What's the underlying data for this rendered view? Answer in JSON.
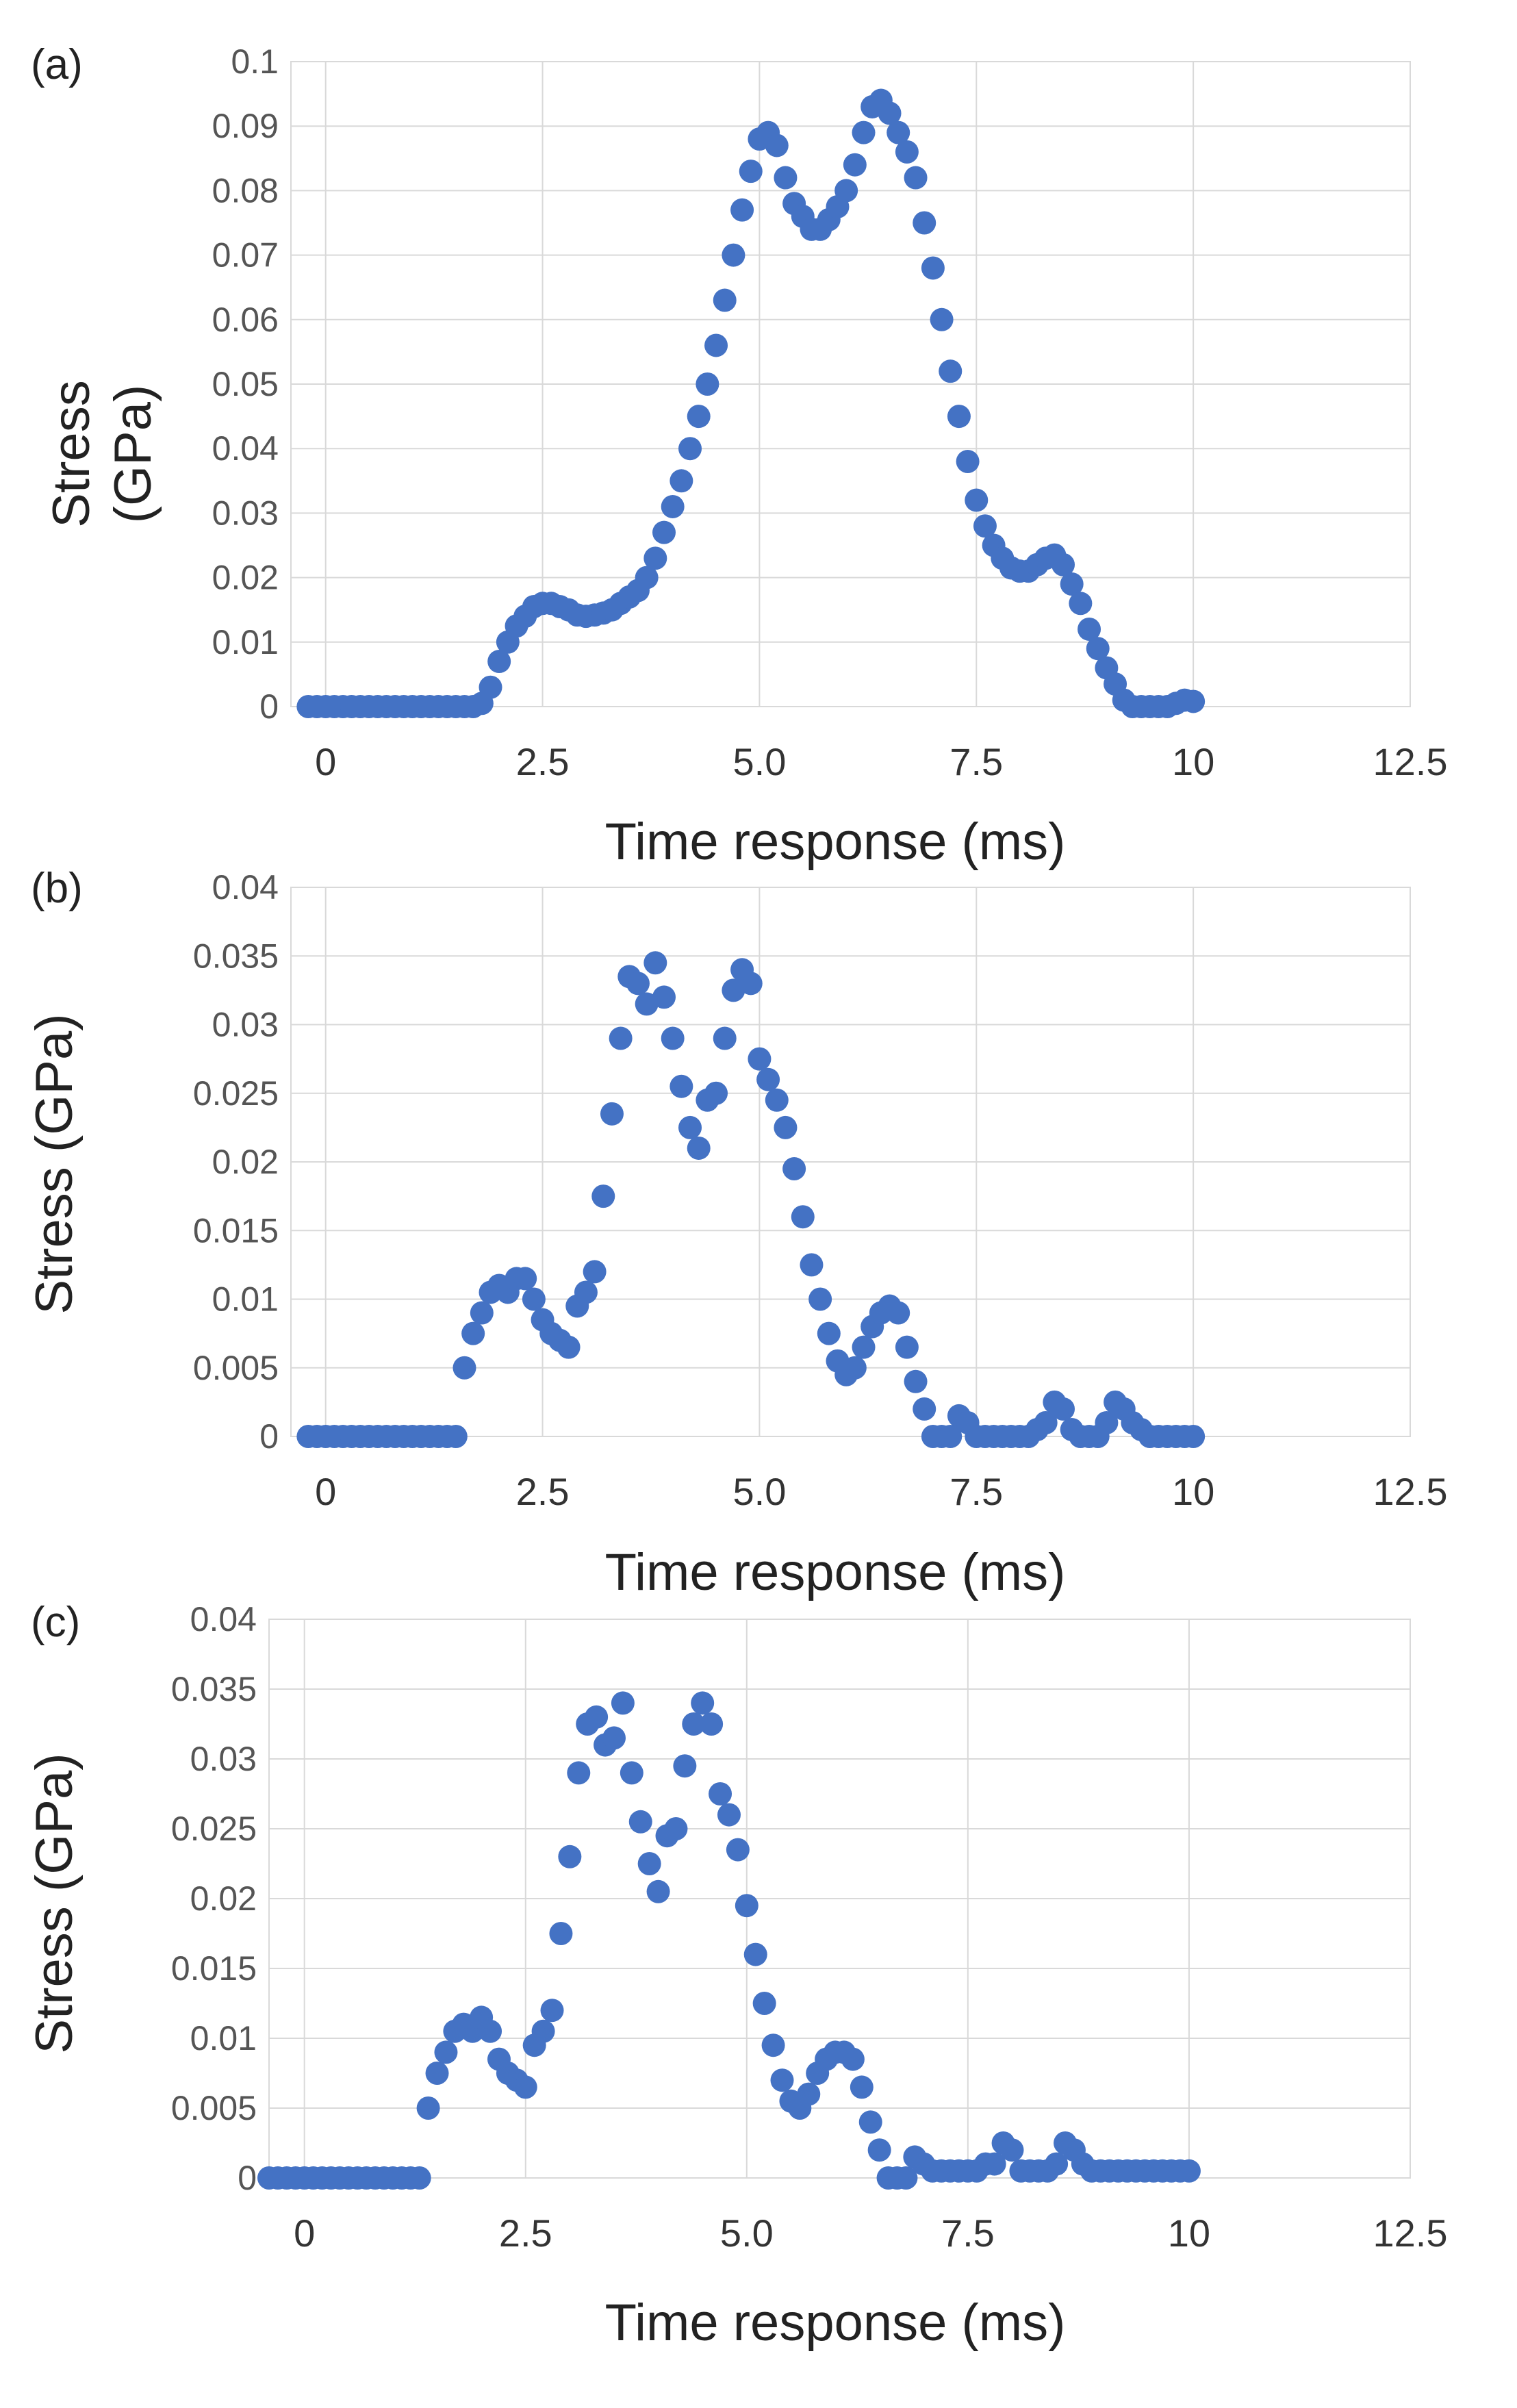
{
  "chart_data": [
    {
      "type": "scatter",
      "panel_label": "(a)",
      "xlabel": "Time response (ms)",
      "ylabel_lines": [
        "Stress",
        "(GPa)"
      ],
      "xlim": [
        -0.4,
        12.5
      ],
      "ylim": [
        0,
        0.1
      ],
      "x_ticks": [
        0,
        2.5,
        5,
        7.5,
        10,
        12.5
      ],
      "x_tick_labels": [
        "0",
        "2.5",
        "5.0",
        "7.5",
        "10",
        "12.5"
      ],
      "y_ticks": [
        0,
        0.01,
        0.02,
        0.03,
        0.04,
        0.05,
        0.06,
        0.07,
        0.08,
        0.09,
        0.1
      ],
      "y_tick_labels": [
        "0",
        "0.01",
        "0.02",
        "0.03",
        "0.04",
        "0.05",
        "0.06",
        "0.07",
        "0.08",
        "0.09",
        "0.1"
      ],
      "grid": true,
      "marker_color": "#4472C4",
      "series": [
        {
          "name": "Stress",
          "x": [
            -0.2,
            -0.1,
            0,
            0.1,
            0.2,
            0.3,
            0.4,
            0.5,
            0.6,
            0.7,
            0.8,
            0.9,
            1.0,
            1.1,
            1.2,
            1.3,
            1.4,
            1.5,
            1.6,
            1.7,
            1.8,
            1.9,
            2.0,
            2.1,
            2.2,
            2.3,
            2.4,
            2.5,
            2.6,
            2.7,
            2.8,
            2.9,
            3.0,
            3.1,
            3.2,
            3.3,
            3.4,
            3.5,
            3.6,
            3.7,
            3.8,
            3.9,
            4.0,
            4.1,
            4.2,
            4.3,
            4.4,
            4.5,
            4.6,
            4.7,
            4.8,
            4.9,
            5.0,
            5.1,
            5.2,
            5.3,
            5.4,
            5.5,
            5.6,
            5.7,
            5.8,
            5.9,
            6.0,
            6.1,
            6.2,
            6.3,
            6.4,
            6.5,
            6.6,
            6.7,
            6.8,
            6.9,
            7.0,
            7.1,
            7.2,
            7.3,
            7.4,
            7.5,
            7.6,
            7.7,
            7.8,
            7.9,
            8.0,
            8.1,
            8.2,
            8.3,
            8.4,
            8.5,
            8.6,
            8.7,
            8.8,
            8.9,
            9.0,
            9.1,
            9.2,
            9.3,
            9.4,
            9.5,
            9.6,
            9.7,
            9.8,
            9.9,
            10.0
          ],
          "y": [
            0,
            0,
            0,
            0,
            0,
            0,
            0,
            0,
            0,
            0,
            0,
            0,
            0,
            0,
            0,
            0,
            0,
            0,
            0,
            0,
            0.0005,
            0.003,
            0.007,
            0.01,
            0.0125,
            0.014,
            0.0155,
            0.016,
            0.016,
            0.0155,
            0.015,
            0.0142,
            0.014,
            0.0142,
            0.0145,
            0.015,
            0.016,
            0.017,
            0.018,
            0.02,
            0.023,
            0.027,
            0.031,
            0.035,
            0.04,
            0.045,
            0.05,
            0.056,
            0.063,
            0.07,
            0.077,
            0.083,
            0.088,
            0.089,
            0.087,
            0.082,
            0.078,
            0.076,
            0.074,
            0.074,
            0.0755,
            0.0775,
            0.08,
            0.084,
            0.089,
            0.093,
            0.094,
            0.092,
            0.089,
            0.086,
            0.082,
            0.075,
            0.068,
            0.06,
            0.052,
            0.045,
            0.038,
            0.032,
            0.028,
            0.025,
            0.023,
            0.0215,
            0.021,
            0.021,
            0.022,
            0.023,
            0.0235,
            0.022,
            0.019,
            0.016,
            0.012,
            0.009,
            0.006,
            0.0035,
            0.001,
            0,
            0,
            0,
            0,
            0,
            0.0005,
            0.001,
            0.0008
          ]
        }
      ]
    },
    {
      "type": "scatter",
      "panel_label": "(b)",
      "xlabel": "Time response (ms)",
      "ylabel": "Stress (GPa)",
      "xlim": [
        -0.4,
        12.5
      ],
      "ylim": [
        0,
        0.04
      ],
      "x_ticks": [
        0,
        2.5,
        5,
        7.5,
        10,
        12.5
      ],
      "x_tick_labels": [
        "0",
        "2.5",
        "5.0",
        "7.5",
        "10",
        "12.5"
      ],
      "y_ticks": [
        0,
        0.005,
        0.01,
        0.015,
        0.02,
        0.025,
        0.03,
        0.035,
        0.04
      ],
      "y_tick_labels": [
        "0",
        "0.005",
        "0.01",
        "0.015",
        "0.02",
        "0.025",
        "0.03",
        "0.035",
        "0.04"
      ],
      "grid": true,
      "marker_color": "#4472C4",
      "series": [
        {
          "name": "Stress",
          "x": [
            -0.2,
            -0.1,
            0,
            0.1,
            0.2,
            0.3,
            0.4,
            0.5,
            0.6,
            0.7,
            0.8,
            0.9,
            1.0,
            1.1,
            1.2,
            1.3,
            1.4,
            1.5,
            1.6,
            1.7,
            1.8,
            1.9,
            2.0,
            2.1,
            2.2,
            2.3,
            2.4,
            2.5,
            2.6,
            2.7,
            2.8,
            2.9,
            3.0,
            3.1,
            3.2,
            3.3,
            3.4,
            3.5,
            3.6,
            3.7,
            3.8,
            3.9,
            4.0,
            4.1,
            4.2,
            4.3,
            4.4,
            4.5,
            4.6,
            4.7,
            4.8,
            4.9,
            5.0,
            5.1,
            5.2,
            5.3,
            5.4,
            5.5,
            5.6,
            5.7,
            5.8,
            5.9,
            6.0,
            6.1,
            6.2,
            6.3,
            6.4,
            6.5,
            6.6,
            6.7,
            6.8,
            6.9,
            7.0,
            7.1,
            7.2,
            7.3,
            7.4,
            7.5,
            7.6,
            7.7,
            7.8,
            7.9,
            8.0,
            8.1,
            8.2,
            8.3,
            8.4,
            8.5,
            8.6,
            8.7,
            8.8,
            8.9,
            9.0,
            9.1,
            9.2,
            9.3,
            9.4,
            9.5,
            9.6,
            9.7,
            9.8,
            9.9,
            10.0
          ],
          "y": [
            0,
            0,
            0,
            0,
            0,
            0,
            0,
            0,
            0,
            0,
            0,
            0,
            0,
            0,
            0,
            0,
            0,
            0,
            0.005,
            0.0075,
            0.009,
            0.0105,
            0.011,
            0.0105,
            0.0115,
            0.0115,
            0.01,
            0.0085,
            0.0075,
            0.007,
            0.0065,
            0.0095,
            0.0105,
            0.012,
            0.0175,
            0.0235,
            0.029,
            0.0335,
            0.033,
            0.0315,
            0.0345,
            0.032,
            0.029,
            0.0255,
            0.0225,
            0.021,
            0.0245,
            0.025,
            0.029,
            0.0325,
            0.034,
            0.033,
            0.0275,
            0.026,
            0.0245,
            0.0225,
            0.0195,
            0.016,
            0.0125,
            0.01,
            0.0075,
            0.0055,
            0.0045,
            0.005,
            0.0065,
            0.008,
            0.009,
            0.0095,
            0.009,
            0.0065,
            0.004,
            0.002,
            0,
            0,
            0,
            0.0015,
            0.001,
            0,
            0,
            0,
            0,
            0,
            0,
            0,
            0.0005,
            0.001,
            0.0025,
            0.002,
            0.0005,
            0,
            0,
            0,
            0.001,
            0.0025,
            0.002,
            0.001,
            0.0005,
            0,
            0,
            0,
            0,
            0,
            0
          ]
        }
      ]
    },
    {
      "type": "scatter",
      "panel_label": "(c)",
      "xlabel": "Time response (ms)",
      "ylabel": "Stress (GPa)",
      "xlim": [
        -0.4,
        12.5
      ],
      "ylim": [
        0,
        0.04
      ],
      "x_ticks": [
        0,
        2.5,
        5,
        7.5,
        10,
        12.5
      ],
      "x_tick_labels": [
        "0",
        "2.5",
        "5.0",
        "7.5",
        "10",
        "12.5"
      ],
      "y_ticks": [
        0,
        0.005,
        0.01,
        0.015,
        0.02,
        0.025,
        0.03,
        0.035,
        0.04
      ],
      "y_tick_labels": [
        "0",
        "0.005",
        "0.01",
        "0.015",
        "0.02",
        "0.025",
        "0.03",
        "0.035",
        "0.04"
      ],
      "grid": true,
      "marker_color": "#4472C4",
      "series": [
        {
          "name": "Stress",
          "x": [
            -0.4,
            -0.3,
            -0.2,
            -0.1,
            0,
            0.1,
            0.2,
            0.3,
            0.4,
            0.5,
            0.6,
            0.7,
            0.8,
            0.9,
            1.0,
            1.1,
            1.2,
            1.3,
            1.4,
            1.5,
            1.6,
            1.7,
            1.8,
            1.9,
            2.0,
            2.1,
            2.2,
            2.3,
            2.4,
            2.5,
            2.6,
            2.7,
            2.8,
            2.9,
            3.0,
            3.1,
            3.2,
            3.3,
            3.4,
            3.5,
            3.6,
            3.7,
            3.8,
            3.9,
            4.0,
            4.1,
            4.2,
            4.3,
            4.4,
            4.5,
            4.6,
            4.7,
            4.8,
            4.9,
            5.0,
            5.1,
            5.2,
            5.3,
            5.4,
            5.5,
            5.6,
            5.7,
            5.8,
            5.9,
            6.0,
            6.1,
            6.2,
            6.3,
            6.4,
            6.5,
            6.6,
            6.7,
            6.8,
            6.9,
            7.0,
            7.1,
            7.2,
            7.3,
            7.4,
            7.5,
            7.6,
            7.7,
            7.8,
            7.9,
            8.0,
            8.1,
            8.2,
            8.3,
            8.4,
            8.5,
            8.6,
            8.7,
            8.8,
            8.9,
            9.0,
            9.1,
            9.2,
            9.3,
            9.4,
            9.5,
            9.6,
            9.7,
            9.8,
            9.9,
            10.0
          ],
          "y": [
            0,
            0,
            0,
            0,
            0,
            0,
            0,
            0,
            0,
            0,
            0,
            0,
            0,
            0,
            0,
            0,
            0,
            0,
            0.005,
            0.0075,
            0.009,
            0.0105,
            0.011,
            0.0105,
            0.0115,
            0.0105,
            0.0085,
            0.0075,
            0.007,
            0.0065,
            0.0095,
            0.0105,
            0.012,
            0.0175,
            0.023,
            0.029,
            0.0325,
            0.033,
            0.031,
            0.0315,
            0.034,
            0.029,
            0.0255,
            0.0225,
            0.0205,
            0.0245,
            0.025,
            0.0295,
            0.0325,
            0.034,
            0.0325,
            0.0275,
            0.026,
            0.0235,
            0.0195,
            0.016,
            0.0125,
            0.0095,
            0.007,
            0.0055,
            0.005,
            0.006,
            0.0075,
            0.0085,
            0.009,
            0.009,
            0.0085,
            0.0065,
            0.004,
            0.002,
            0,
            0,
            0,
            0.0015,
            0.001,
            0.0005,
            0.0005,
            0.0005,
            0.0005,
            0.0005,
            0.0005,
            0.001,
            0.001,
            0.0025,
            0.002,
            0.0005,
            0.0005,
            0.0005,
            0.0005,
            0.001,
            0.0025,
            0.002,
            0.001,
            0.0005,
            0.0005,
            0.0005,
            0.0005,
            0.0005,
            0.0005,
            0.0005,
            0.0005,
            0.0005,
            0.0005,
            0.0005,
            0.0005
          ]
        }
      ]
    }
  ]
}
